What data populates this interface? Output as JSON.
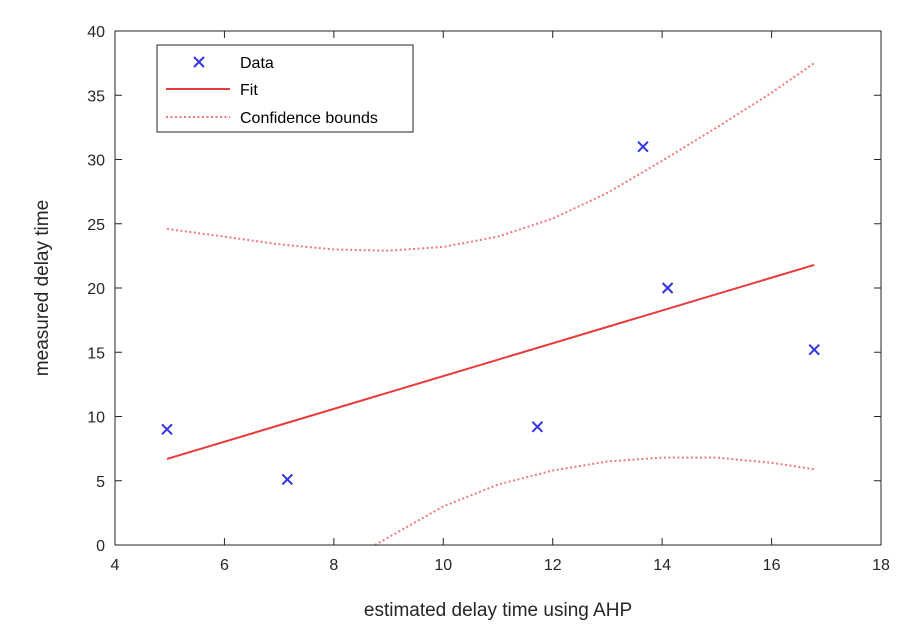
{
  "chart_data": {
    "type": "scatter",
    "title": "",
    "xlabel": "estimated delay time using AHP",
    "ylabel": "measured delay time",
    "xlim": [
      4,
      18
    ],
    "ylim": [
      0,
      40
    ],
    "xticks": [
      4,
      6,
      8,
      10,
      12,
      14,
      16,
      18
    ],
    "yticks": [
      0,
      5,
      10,
      15,
      20,
      25,
      30,
      35,
      40
    ],
    "grid": false,
    "legend_position": "top-left",
    "colors": {
      "data": "#3333e0",
      "fit": "#e83a3a",
      "bounds": "#f07a7a",
      "axes": "#262626"
    },
    "series": [
      {
        "name": "Data",
        "style": "marker-x",
        "x": [
          4.95,
          7.15,
          11.72,
          13.65,
          14.1,
          16.78
        ],
        "y": [
          9.0,
          5.1,
          9.2,
          31.0,
          20.0,
          15.2
        ]
      },
      {
        "name": "Fit",
        "style": "solid-line",
        "x": [
          4.95,
          16.78
        ],
        "y": [
          6.7,
          21.8
        ]
      },
      {
        "name": "Confidence bounds",
        "style": "dotted-line",
        "x": [
          4.95,
          6,
          7,
          8,
          9,
          10,
          11,
          12,
          13,
          14,
          15,
          16,
          16.78
        ],
        "y": [
          24.6,
          24.0,
          23.4,
          23.0,
          22.9,
          23.2,
          24.0,
          25.4,
          27.4,
          29.9,
          32.5,
          35.2,
          37.5
        ]
      },
      {
        "name": "",
        "style": "dotted-line",
        "x": [
          8.75,
          9,
          10,
          11,
          12,
          13,
          14,
          15,
          16,
          16.78
        ],
        "y": [
          0.0,
          0.6,
          3.0,
          4.7,
          5.8,
          6.5,
          6.8,
          6.8,
          6.4,
          5.9
        ]
      }
    ]
  }
}
